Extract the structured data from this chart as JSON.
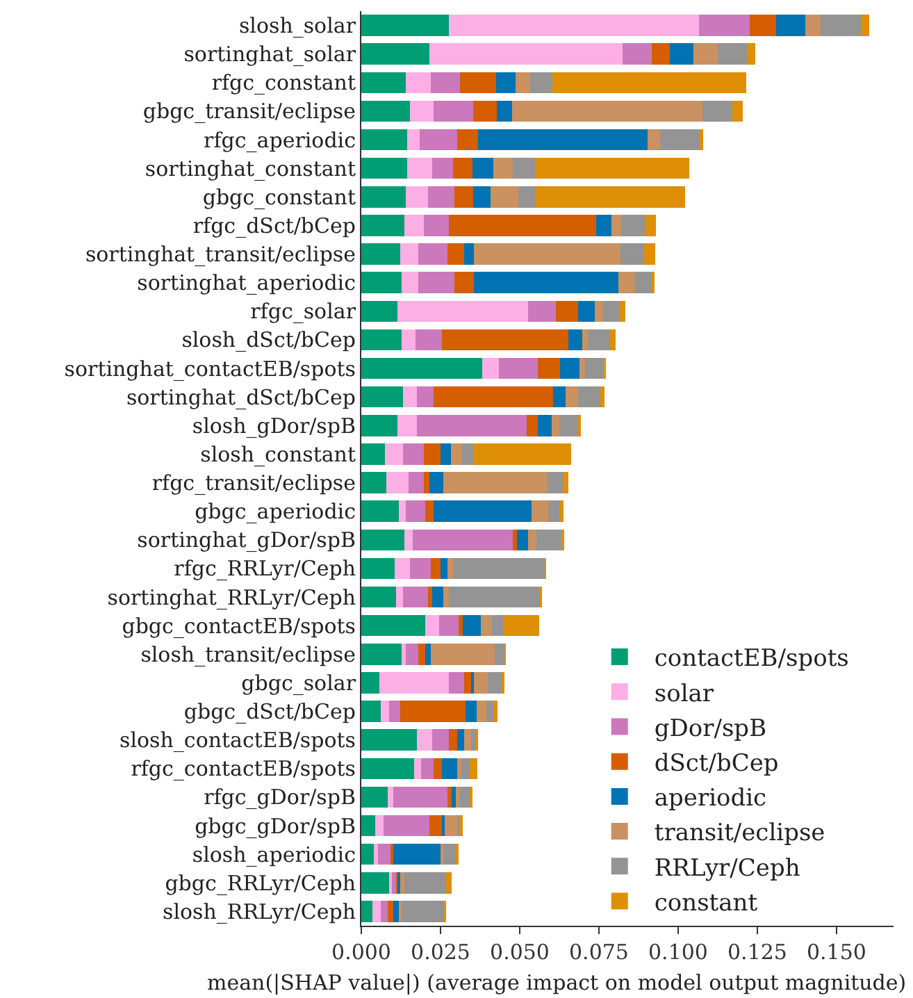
{
  "chart_data": {
    "type": "bar",
    "orientation": "horizontal",
    "stacked": true,
    "xlabel": "mean(|SHAP value|) (average impact on model output magnitude)",
    "categories": [
      "slosh_solar",
      "sortinghat_solar",
      "rfgc_constant",
      "gbgc_transit/eclipse",
      "rfgc_aperiodic",
      "sortinghat_constant",
      "gbgc_constant",
      "rfgc_dSct/bCep",
      "sortinghat_transit/eclipse",
      "sortinghat_aperiodic",
      "rfgc_solar",
      "slosh_dSct/bCep",
      "sortinghat_contactEB/spots",
      "sortinghat_dSct/bCep",
      "slosh_gDor/spB",
      "slosh_constant",
      "rfgc_transit/eclipse",
      "gbgc_aperiodic",
      "sortinghat_gDor/spB",
      "rfgc_RRLyr/Ceph",
      "sortinghat_RRLyr/Ceph",
      "gbgc_contactEB/spots",
      "slosh_transit/eclipse",
      "gbgc_solar",
      "gbgc_dSct/bCep",
      "slosh_contactEB/spots",
      "rfgc_contactEB/spots",
      "rfgc_gDor/spB",
      "gbgc_gDor/spB",
      "slosh_aperiodic",
      "gbgc_RRLyr/Ceph",
      "slosh_RRLyr/Ceph"
    ],
    "series": [
      {
        "name": "contactEB/spots",
        "color": "#029e73",
        "values": [
          0.0276,
          0.0215,
          0.014,
          0.0154,
          0.0145,
          0.0145,
          0.014,
          0.0136,
          0.0123,
          0.0127,
          0.0114,
          0.0127,
          0.0382,
          0.0132,
          0.0114,
          0.0075,
          0.0079,
          0.0118,
          0.0136,
          0.0105,
          0.011,
          0.0202,
          0.0127,
          0.0057,
          0.0061,
          0.0175,
          0.0167,
          0.0083,
          0.0044,
          0.0039,
          0.0092,
          0.0035
        ]
      },
      {
        "name": "solar",
        "color": "#fbafe4",
        "values": [
          0.0789,
          0.061,
          0.0079,
          0.0075,
          0.0039,
          0.0079,
          0.007,
          0.0061,
          0.0057,
          0.0053,
          0.0412,
          0.0044,
          0.0053,
          0.0044,
          0.0061,
          0.0057,
          0.007,
          0.0022,
          0.0026,
          0.0048,
          0.0022,
          0.0044,
          0.0013,
          0.0219,
          0.0026,
          0.0048,
          0.0022,
          0.0018,
          0.0026,
          0.0013,
          0.0004,
          0.0026
        ]
      },
      {
        "name": "gDor/spB",
        "color": "#cc78bc",
        "values": [
          0.0162,
          0.0092,
          0.0092,
          0.0123,
          0.0118,
          0.0066,
          0.0083,
          0.0079,
          0.0092,
          0.0114,
          0.0088,
          0.0083,
          0.0123,
          0.0053,
          0.0346,
          0.0066,
          0.0048,
          0.0061,
          0.0316,
          0.0066,
          0.0079,
          0.0061,
          0.0039,
          0.0048,
          0.0035,
          0.0053,
          0.0039,
          0.0171,
          0.0145,
          0.0039,
          0.0018,
          0.0022
        ]
      },
      {
        "name": "dSct/bCep",
        "color": "#d55e00",
        "values": [
          0.0083,
          0.0057,
          0.0114,
          0.0075,
          0.0066,
          0.0061,
          0.0061,
          0.0465,
          0.0053,
          0.0061,
          0.007,
          0.0399,
          0.007,
          0.0377,
          0.0035,
          0.0053,
          0.0018,
          0.0026,
          0.0013,
          0.0031,
          0.0013,
          0.0013,
          0.0022,
          0.0022,
          0.0206,
          0.0026,
          0.0026,
          0.0013,
          0.0039,
          0.0009,
          0.0004,
          0.0018
        ]
      },
      {
        "name": "aperiodic",
        "color": "#0173b2",
        "values": [
          0.0092,
          0.0075,
          0.0061,
          0.0048,
          0.0535,
          0.0066,
          0.0053,
          0.0048,
          0.0031,
          0.0456,
          0.0053,
          0.0044,
          0.0061,
          0.0039,
          0.0044,
          0.0031,
          0.0044,
          0.0311,
          0.0035,
          0.0022,
          0.0035,
          0.0057,
          0.0018,
          0.0009,
          0.0035,
          0.0022,
          0.0048,
          0.0013,
          0.0009,
          0.0149,
          0.0004,
          0.0018
        ]
      },
      {
        "name": "transit/eclipse",
        "color": "#ca9161",
        "values": [
          0.0048,
          0.0075,
          0.0048,
          0.0601,
          0.0039,
          0.0061,
          0.0088,
          0.0031,
          0.0461,
          0.0053,
          0.0026,
          0.0018,
          0.0018,
          0.0039,
          0.0026,
          0.0035,
          0.0329,
          0.0053,
          0.0026,
          0.0018,
          0.0018,
          0.0035,
          0.0202,
          0.0044,
          0.0031,
          0.0022,
          0.0013,
          0.0013,
          0.0039,
          0.0013,
          0.0013,
          0.0009
        ]
      },
      {
        "name": "RRLyr/Ceph",
        "color": "#949494",
        "values": [
          0.0126,
          0.0094,
          0.007,
          0.0096,
          0.0123,
          0.007,
          0.0053,
          0.0075,
          0.0075,
          0.0054,
          0.0053,
          0.007,
          0.0057,
          0.007,
          0.0061,
          0.0035,
          0.0048,
          0.0035,
          0.0079,
          0.0289,
          0.0285,
          0.0035,
          0.0031,
          0.0044,
          0.0022,
          0.0018,
          0.0026,
          0.0035,
          0.0013,
          0.0039,
          0.0132,
          0.0132
        ]
      },
      {
        "name": "constant",
        "color": "#de8f05",
        "values": [
          0.0028,
          0.0025,
          0.061,
          0.0031,
          0.0013,
          0.0487,
          0.0474,
          0.0035,
          0.0035,
          0.0007,
          0.0018,
          0.0018,
          0.0004,
          0.0013,
          0.0004,
          0.0311,
          0.0018,
          0.0013,
          0.0009,
          0.0004,
          0.0009,
          0.0114,
          0.0004,
          0.0009,
          0.0013,
          0.0004,
          0.0026,
          0.0004,
          0.0004,
          0.0004,
          0.0018,
          0.0004
        ]
      }
    ],
    "xlim": [
      0,
      0.168
    ],
    "xticks": [
      {
        "value": 0,
        "label": "0.000"
      },
      {
        "value": 0.025,
        "label": "0.025"
      },
      {
        "value": 0.05,
        "label": "0.050"
      },
      {
        "value": 0.075,
        "label": "0.075"
      },
      {
        "value": 0.1,
        "label": "0.100"
      },
      {
        "value": 0.125,
        "label": "0.125"
      },
      {
        "value": 0.15,
        "label": "0.150"
      }
    ],
    "grid": false,
    "legend": "bottom right"
  }
}
